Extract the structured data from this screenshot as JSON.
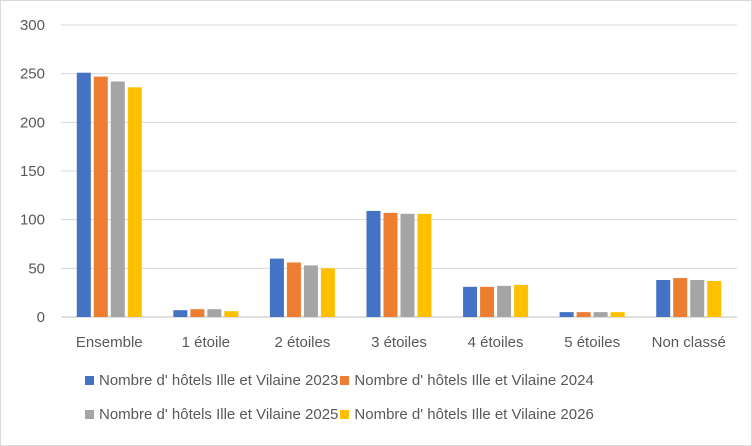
{
  "chart_data": {
    "type": "bar",
    "title": "",
    "xlabel": "",
    "ylabel": "",
    "ylim": [
      0,
      300
    ],
    "yticks": [
      0,
      50,
      100,
      150,
      200,
      250,
      300
    ],
    "grid": true,
    "legend_position": "bottom",
    "categories": [
      "Ensemble",
      "1 étoile",
      "2 étoiles",
      "3 étoiles",
      "4 étoiles",
      "5 étoiles",
      "Non classé"
    ],
    "series": [
      {
        "name": "Nombre d' hôtels Ille et Vilaine 2023",
        "color": "#4472c4",
        "values": [
          251,
          7,
          60,
          109,
          31,
          5,
          38
        ]
      },
      {
        "name": "Nombre d' hôtels Ille et Vilaine 2024",
        "color": "#ed7d31",
        "values": [
          247,
          8,
          56,
          107,
          31,
          5,
          40
        ]
      },
      {
        "name": "Nombre d' hôtels Ille et Vilaine 2025",
        "color": "#a5a5a5",
        "values": [
          242,
          8,
          53,
          106,
          32,
          5,
          38
        ]
      },
      {
        "name": "Nombre d' hôtels Ille et Vilaine 2026",
        "color": "#ffc000",
        "values": [
          236,
          6,
          50,
          106,
          33,
          5,
          37
        ]
      }
    ]
  }
}
